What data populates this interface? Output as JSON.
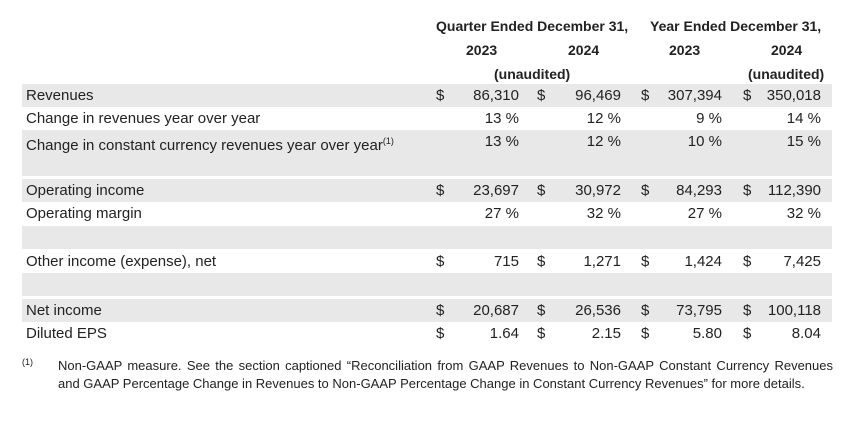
{
  "headers": {
    "quarter_period": "Quarter Ended December 31,",
    "year_period": "Year Ended December 31,",
    "years": [
      "2023",
      "2024",
      "2023",
      "2024"
    ],
    "unaudited": "(unaudited)"
  },
  "rows": [
    {
      "label": "Revenues",
      "sup": "",
      "cells": [
        {
          "cur": "$",
          "val": "86,310"
        },
        {
          "cur": "$",
          "val": "96,469"
        },
        {
          "cur": "$",
          "val": "307,394"
        },
        {
          "cur": "$",
          "val": "350,018"
        }
      ]
    },
    {
      "label": "Change in revenues year over year",
      "sup": "",
      "cells": [
        {
          "cur": "",
          "val": "13 %"
        },
        {
          "cur": "",
          "val": "12 %"
        },
        {
          "cur": "",
          "val": "9 %"
        },
        {
          "cur": "",
          "val": "14 %"
        }
      ]
    },
    {
      "label": "Change in constant currency revenues year over year",
      "sup": "(1)",
      "cells": [
        {
          "cur": "",
          "val": "13 %"
        },
        {
          "cur": "",
          "val": "12 %"
        },
        {
          "cur": "",
          "val": "10 %"
        },
        {
          "cur": "",
          "val": "15 %"
        }
      ]
    },
    {
      "label": "Operating income",
      "sup": "",
      "cells": [
        {
          "cur": "$",
          "val": "23,697"
        },
        {
          "cur": "$",
          "val": "30,972"
        },
        {
          "cur": "$",
          "val": "84,293"
        },
        {
          "cur": "$",
          "val": "112,390"
        }
      ]
    },
    {
      "label": "Operating margin",
      "sup": "",
      "cells": [
        {
          "cur": "",
          "val": "27 %"
        },
        {
          "cur": "",
          "val": "32 %"
        },
        {
          "cur": "",
          "val": "27 %"
        },
        {
          "cur": "",
          "val": "32 %"
        }
      ]
    },
    {
      "label": "Other income (expense), net",
      "sup": "",
      "cells": [
        {
          "cur": "$",
          "val": "715"
        },
        {
          "cur": "$",
          "val": "1,271"
        },
        {
          "cur": "$",
          "val": "1,424"
        },
        {
          "cur": "$",
          "val": "7,425"
        }
      ]
    },
    {
      "label": "Net income",
      "sup": "",
      "cells": [
        {
          "cur": "$",
          "val": "20,687"
        },
        {
          "cur": "$",
          "val": "26,536"
        },
        {
          "cur": "$",
          "val": "73,795"
        },
        {
          "cur": "$",
          "val": "100,118"
        }
      ]
    },
    {
      "label": "Diluted EPS",
      "sup": "",
      "cells": [
        {
          "cur": "$",
          "val": "1.64"
        },
        {
          "cur": "$",
          "val": "2.15"
        },
        {
          "cur": "$",
          "val": "5.80"
        },
        {
          "cur": "$",
          "val": "8.04"
        }
      ]
    }
  ],
  "footnote": {
    "marker": "(1)",
    "text": "Non-GAAP measure. See the section captioned “Reconciliation from GAAP Revenues to Non-GAAP Constant Currency Revenues and GAAP Percentage Change in Revenues to Non-GAAP Percentage Change in Constant Currency Revenues” for more details."
  }
}
